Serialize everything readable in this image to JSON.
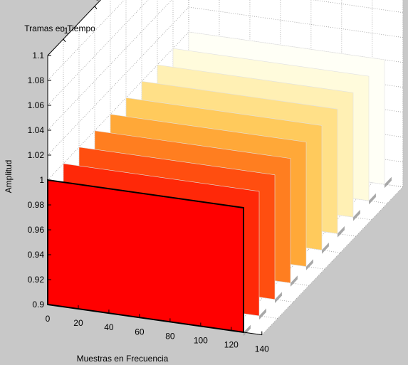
{
  "chart_data": {
    "type": "3d-bar-slices",
    "title": "",
    "xlabel": "Muestras en Frecuencia",
    "ylabel": "Tramas en Tiempo",
    "zlabel": "Amplitud",
    "xlim": [
      0,
      140
    ],
    "ylim": [
      -9,
      0
    ],
    "zlim": [
      0.9,
      1.1
    ],
    "x_ticks": [
      "0",
      "20",
      "40",
      "60",
      "80",
      "100",
      "120",
      "140"
    ],
    "y_ticks": [
      "-1",
      "-3",
      "-5",
      "-7",
      "-9"
    ],
    "z_ticks": [
      "0.9",
      "0.92",
      "0.94",
      "0.96",
      "0.98",
      "1",
      "1.02",
      "1.04",
      "1.06",
      "1.08",
      "1.1"
    ],
    "grid": true,
    "series": [
      {
        "frame": -9,
        "x": [
          0,
          128
        ],
        "amplitude": 1,
        "color": "#FFFFF6"
      },
      {
        "frame": -8,
        "x": [
          0,
          128
        ],
        "amplitude": 1,
        "color": "#FFFBDC"
      },
      {
        "frame": -7,
        "x": [
          0,
          128
        ],
        "amplitude": 1,
        "color": "#FFF0B4"
      },
      {
        "frame": -6,
        "x": [
          0,
          128
        ],
        "amplitude": 1,
        "color": "#FFE088"
      },
      {
        "frame": -5,
        "x": [
          0,
          128
        ],
        "amplitude": 1,
        "color": "#FFCA5C"
      },
      {
        "frame": -4,
        "x": [
          0,
          128
        ],
        "amplitude": 1,
        "color": "#FFA838"
      },
      {
        "frame": -3,
        "x": [
          0,
          128
        ],
        "amplitude": 1,
        "color": "#FF7E20"
      },
      {
        "frame": -2,
        "x": [
          0,
          128
        ],
        "amplitude": 1,
        "color": "#FF4E10"
      },
      {
        "frame": -1,
        "x": [
          0,
          128
        ],
        "amplitude": 1,
        "color": "#FF2808"
      },
      {
        "frame": 0,
        "x": [
          0,
          128
        ],
        "amplitude": 1,
        "color": "#FF0000"
      }
    ]
  }
}
